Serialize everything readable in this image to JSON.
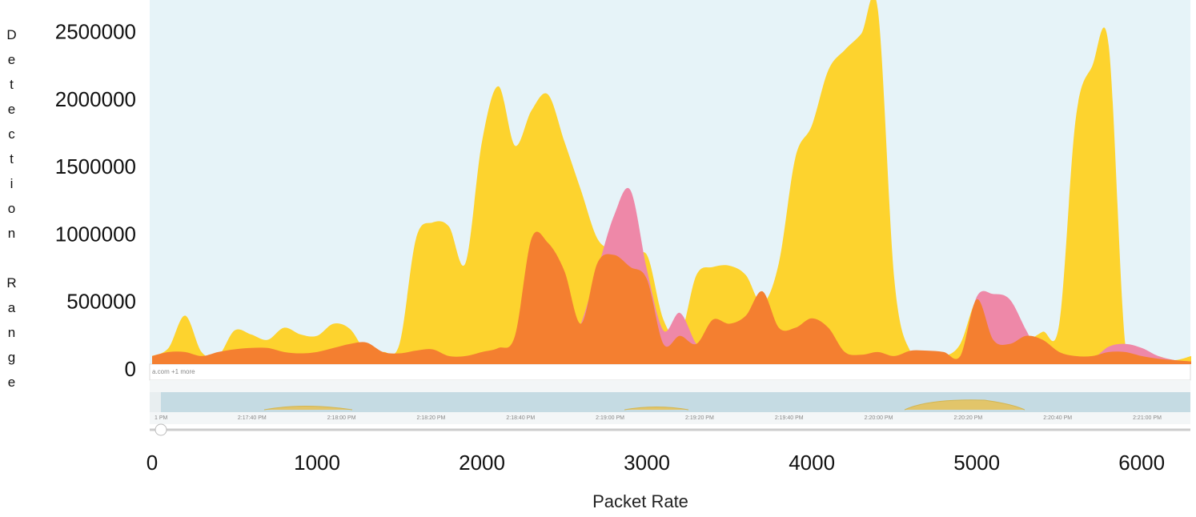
{
  "chart_data": {
    "type": "area",
    "x_label": "Packet Rate",
    "y_label": "Detection Range",
    "x": [
      0,
      100,
      200,
      300,
      400,
      500,
      600,
      700,
      800,
      900,
      1000,
      1100,
      1200,
      1300,
      1400,
      1500,
      1600,
      1700,
      1800,
      1900,
      2000,
      2100,
      2200,
      2300,
      2400,
      2500,
      2600,
      2700,
      2800,
      2900,
      3000,
      3100,
      3200,
      3300,
      3400,
      3500,
      3600,
      3700,
      3800,
      3900,
      4000,
      4100,
      4200,
      4300,
      4400,
      4500,
      4600,
      4700,
      4800,
      4900,
      5000,
      5100,
      5200,
      5300,
      5400,
      5500,
      5600,
      5700,
      5800,
      5900,
      6000,
      6100,
      6200,
      6300
    ],
    "series": [
      {
        "color": "#fdd32e",
        "values": [
          60000,
          120000,
          360000,
          90000,
          60000,
          250000,
          220000,
          180000,
          270000,
          220000,
          210000,
          300000,
          260000,
          90000,
          90000,
          150000,
          930000,
          1050000,
          1020000,
          750000,
          1650000,
          2060000,
          1620000,
          1880000,
          2000000,
          1650000,
          1290000,
          930000,
          840000,
          750000,
          810000,
          330000,
          210000,
          660000,
          720000,
          730000,
          660000,
          450000,
          750000,
          1530000,
          1770000,
          2180000,
          2330000,
          2450000,
          2630000,
          630000,
          90000,
          90000,
          60000,
          150000,
          480000,
          420000,
          240000,
          180000,
          240000,
          300000,
          1820000,
          2210000,
          2360000,
          150000,
          90000,
          60000,
          30000,
          60000
        ]
      },
      {
        "color": "#ee88a8",
        "values": [
          40000,
          40000,
          40000,
          40000,
          40000,
          40000,
          40000,
          40000,
          40000,
          40000,
          40000,
          40000,
          40000,
          40000,
          40000,
          40000,
          40000,
          40000,
          40000,
          40000,
          40000,
          40000,
          40000,
          40000,
          40000,
          40000,
          300000,
          700000,
          1100000,
          1290000,
          700000,
          250000,
          380000,
          150000,
          40000,
          40000,
          40000,
          520000,
          40000,
          40000,
          40000,
          40000,
          40000,
          40000,
          40000,
          40000,
          40000,
          40000,
          40000,
          40000,
          500000,
          520000,
          480000,
          250000,
          40000,
          40000,
          40000,
          40000,
          130000,
          150000,
          120000,
          60000,
          30000,
          20000
        ]
      },
      {
        "color": "#f47f30",
        "values": [
          60000,
          90000,
          90000,
          60000,
          90000,
          110000,
          120000,
          120000,
          90000,
          80000,
          90000,
          120000,
          150000,
          160000,
          90000,
          80000,
          100000,
          110000,
          60000,
          60000,
          90000,
          120000,
          210000,
          930000,
          900000,
          690000,
          300000,
          750000,
          810000,
          720000,
          630000,
          150000,
          210000,
          150000,
          330000,
          300000,
          360000,
          540000,
          270000,
          270000,
          340000,
          270000,
          90000,
          70000,
          90000,
          60000,
          100000,
          100000,
          90000,
          60000,
          480000,
          180000,
          150000,
          210000,
          180000,
          90000,
          60000,
          60000,
          90000,
          90000,
          60000,
          40000,
          30000,
          20000
        ]
      }
    ],
    "xlim": [
      0,
      6300
    ],
    "xticks": [
      0,
      1000,
      2000,
      3000,
      4000,
      5000,
      6000
    ],
    "ylim": [
      0,
      2700000
    ],
    "yticks": [
      0,
      500000,
      1000000,
      1500000,
      2000000,
      2500000
    ],
    "navigator_legend": "a.com +1 more",
    "navigator_labels": [
      "1 PM",
      "2:17:40 PM",
      "2:18:00 PM",
      "2:18:20 PM",
      "2:18:40 PM",
      "2:19:00 PM",
      "2:19:20 PM",
      "2:19:40 PM",
      "2:20:00 PM",
      "2:20:20 PM",
      "2:20:40 PM",
      "2:21:00 PM"
    ]
  }
}
